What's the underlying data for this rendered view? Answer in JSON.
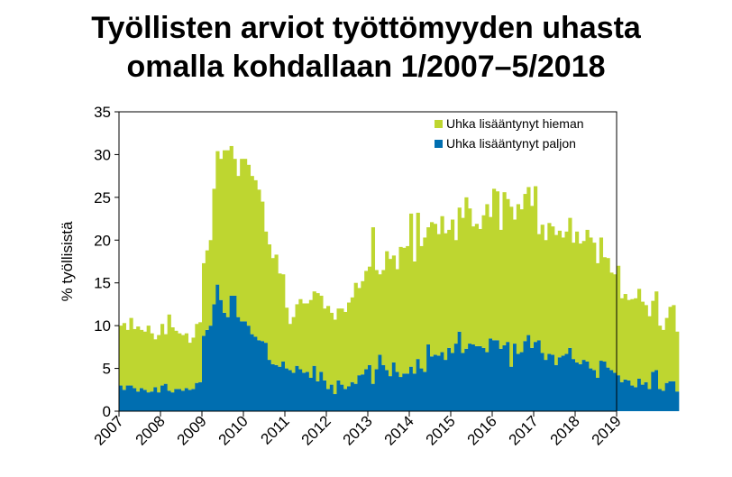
{
  "title_line1": "Työllisten arviot työttömyyden uhasta",
  "title_line2": "omalla kohdallaan 1/2007–5/2018",
  "chart_data": {
    "type": "bar",
    "stacked": true,
    "ylabel": "% työllisistä",
    "ylim": [
      0,
      35
    ],
    "yticks": [
      0,
      5,
      10,
      15,
      20,
      25,
      30,
      35
    ],
    "xticks": [
      "2007",
      "2008",
      "2009",
      "2010",
      "2011",
      "2012",
      "2013",
      "2014",
      "2015",
      "2016",
      "2017",
      "2018",
      "2019"
    ],
    "x_start": "2007-01",
    "x_end": "2018-05",
    "legend_position": "top-right",
    "series": [
      {
        "name": "Uhka lisääntynyt paljon",
        "color": "#006eb0",
        "values": [
          3.0,
          2.5,
          3.0,
          3.0,
          2.7,
          2.3,
          2.7,
          2.5,
          2.2,
          2.3,
          2.8,
          2.2,
          3.0,
          3.2,
          2.4,
          2.2,
          2.6,
          2.6,
          2.4,
          2.7,
          2.5,
          2.6,
          3.3,
          3.4,
          8.8,
          9.5,
          10.0,
          12.5,
          14.8,
          13.0,
          11.5,
          11.0,
          13.5,
          13.5,
          11.0,
          10.5,
          10.5,
          10.0,
          9.0,
          8.7,
          8.3,
          8.2,
          8.0,
          6.0,
          5.5,
          5.4,
          5.2,
          5.8,
          5.0,
          4.8,
          4.5,
          5.3,
          4.9,
          4.5,
          4.6,
          3.9,
          5.3,
          3.5,
          4.6,
          3.6,
          2.6,
          3.1,
          2.0,
          3.6,
          3.1,
          2.6,
          2.9,
          3.4,
          3.2,
          4.2,
          4.3,
          4.9,
          5.4,
          3.2,
          4.9,
          6.6,
          5.4,
          4.8,
          4.1,
          5.7,
          4.6,
          4.0,
          4.4,
          4.4,
          5.2,
          4.4,
          6.1,
          5.0,
          4.6,
          7.8,
          6.4,
          6.6,
          6.5,
          6.9,
          6.0,
          7.4,
          6.8,
          7.9,
          9.3,
          6.8,
          7.3,
          7.9,
          7.8,
          7.6,
          7.6,
          7.4,
          6.9,
          8.5,
          8.3,
          8.3,
          7.3,
          7.7,
          8.1,
          5.2,
          7.9,
          6.7,
          6.9,
          8.2,
          8.9,
          7.4,
          8.1,
          8.3,
          6.8,
          6.0,
          6.7,
          6.6,
          5.4,
          6.3,
          6.5,
          6.7,
          7.4,
          6.1,
          5.7,
          5.5,
          6.0,
          5.8,
          5.0,
          4.8,
          3.9,
          5.9,
          5.8,
          5.1,
          4.8,
          4.5,
          4.2,
          3.4,
          3.7,
          3.6,
          3.0,
          2.8,
          3.8,
          3.1,
          3.4,
          2.6,
          4.6,
          4.8,
          2.6,
          2.4,
          3.3,
          3.5,
          3.5,
          2.3
        ]
      },
      {
        "name": "Uhka lisääntynyt hieman",
        "color": "#bed630",
        "values": [
          7.0,
          7.8,
          6.5,
          7.9,
          6.9,
          7.6,
          6.8,
          6.8,
          7.8,
          6.8,
          5.6,
          6.7,
          7.2,
          5.8,
          8.9,
          7.6,
          6.8,
          6.5,
          6.5,
          6.4,
          5.5,
          6.0,
          6.9,
          7.0,
          8.5,
          9.3,
          10.0,
          13.5,
          15.6,
          16.5,
          19.0,
          19.5,
          17.5,
          16.0,
          16.5,
          19.0,
          19.0,
          18.8,
          18.5,
          18.3,
          17.6,
          16.3,
          13.0,
          13.5,
          12.4,
          12.9,
          10.9,
          10.2,
          7.1,
          5.4,
          6.5,
          7.2,
          8.2,
          8.1,
          8.0,
          9.1,
          8.7,
          10.3,
          8.9,
          8.4,
          9.7,
          8.4,
          8.7,
          8.4,
          8.9,
          9.0,
          9.8,
          9.9,
          11.8,
          10.2,
          10.9,
          11.5,
          11.5,
          18.3,
          11.6,
          9.4,
          11.1,
          13.9,
          13.7,
          12.5,
          12.0,
          15.2,
          14.7,
          14.9,
          17.9,
          13.1,
          17.1,
          14.3,
          15.7,
          13.7,
          15.7,
          15.3,
          14.2,
          15.9,
          14.8,
          13.8,
          15.6,
          12.1,
          14.5,
          15.8,
          17.7,
          15.8,
          13.8,
          14.3,
          13.7,
          15.5,
          17.3,
          14.2,
          17.7,
          17.4,
          13.9,
          17.9,
          16.7,
          18.7,
          14.5,
          17.5,
          16.7,
          17.2,
          17.3,
          16.6,
          18.2,
          12.4,
          15.0,
          14.0,
          15.3,
          15.0,
          15.2,
          14.8,
          13.8,
          14.3,
          15.2,
          13.6,
          15.3,
          14.1,
          13.9,
          15.4,
          15.3,
          14.9,
          13.4,
          14.4,
          12.2,
          12.8,
          11.4,
          11.5,
          12.8,
          9.8,
          10.0,
          9.4,
          10.1,
          10.4,
          10.5,
          9.7,
          9.0,
          8.5,
          8.3,
          9.2,
          7.4,
          7.1,
          7.6,
          8.7,
          8.9,
          7.0
        ]
      }
    ]
  }
}
